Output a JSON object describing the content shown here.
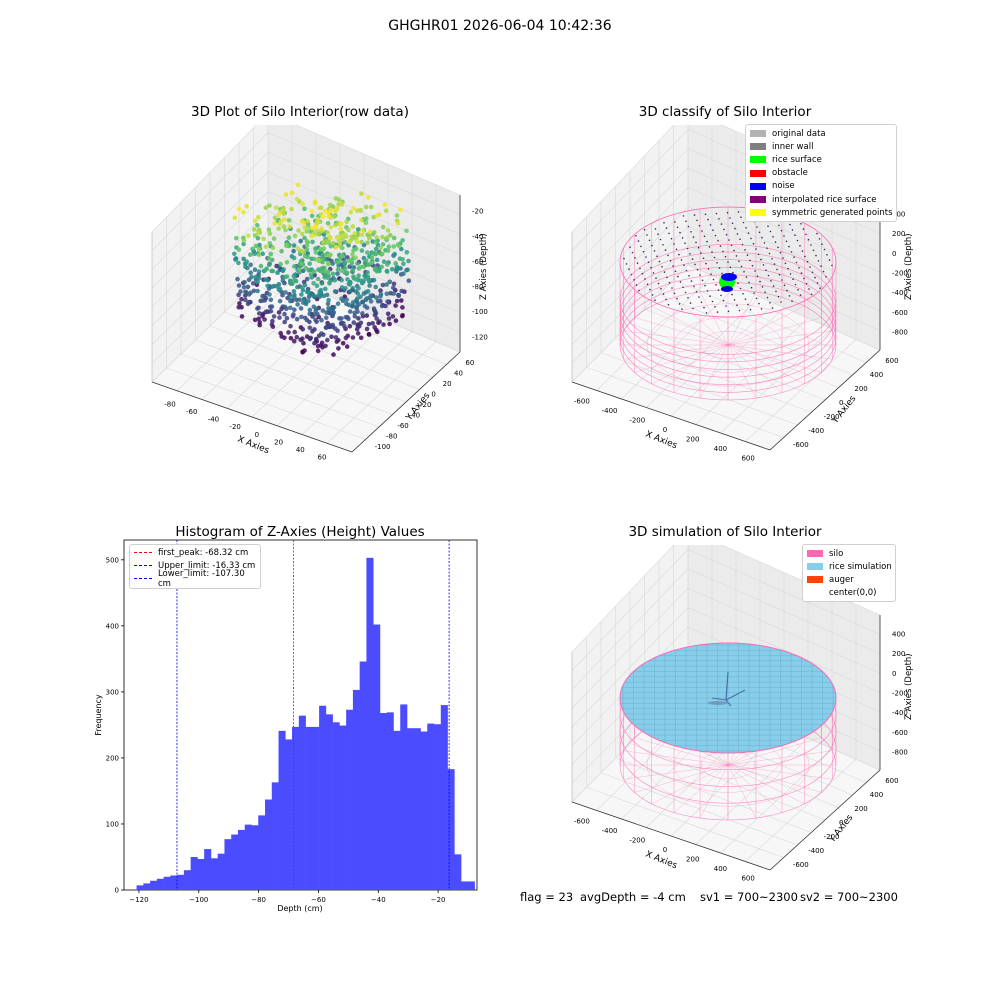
{
  "suptitle": "GHGHR01 2026-06-04 10:42:36",
  "status": {
    "flag": "flag = 23",
    "avg_depth": "avgDepth = -4 cm",
    "sv1": "sv1 = 700~2300",
    "sv2": "sv2 = 700~2300"
  },
  "panels": {
    "raw": {
      "title": "3D Plot of Silo Interior(row data)",
      "xlabel": "X Axies",
      "ylabel": "Y Axies",
      "zlabel": "Z Axies (Depth)",
      "xticks": [
        "-80",
        "-60",
        "-40",
        "-20",
        "0",
        "20",
        "40",
        "60"
      ],
      "yticks": [
        "60",
        "40",
        "20",
        "0",
        "-20",
        "-40",
        "-60",
        "-80",
        "-100"
      ],
      "zticks": [
        "-20",
        "-40",
        "-60",
        "-80",
        "-100",
        "-120"
      ]
    },
    "classify": {
      "title": "3D classify of Silo Interior",
      "xlabel": "X Axies",
      "ylabel": "Y Axies",
      "zlabel": "Z Axies (Depth)",
      "xticks": [
        "-600",
        "-400",
        "-200",
        "0",
        "200",
        "400",
        "600"
      ],
      "yticks": [
        "600",
        "400",
        "200",
        "0",
        "-200",
        "-400",
        "-600"
      ],
      "zticks": [
        "400",
        "200",
        "0",
        "-200",
        "-400",
        "-600",
        "-800"
      ],
      "legend": [
        {
          "label": "original data",
          "color": "#b3b3b3"
        },
        {
          "label": "inner wall",
          "color": "#808080"
        },
        {
          "label": "rice surface",
          "color": "#00ff00"
        },
        {
          "label": "obstacle",
          "color": "#ff0000"
        },
        {
          "label": "noise",
          "color": "#0000ff"
        },
        {
          "label": "interpolated rice surface",
          "color": "#800080"
        },
        {
          "label": "symmetric generated points",
          "color": "#ffff00"
        }
      ]
    },
    "simulation": {
      "title": "3D simulation of Silo Interior",
      "xlabel": "X Axies",
      "ylabel": "Y Axies",
      "zlabel": "Z Axies (Depth)",
      "xticks": [
        "-600",
        "-400",
        "-200",
        "0",
        "200",
        "400",
        "600"
      ],
      "yticks": [
        "600",
        "400",
        "200",
        "0",
        "-200",
        "-400",
        "-600"
      ],
      "zticks": [
        "400",
        "200",
        "0",
        "-200",
        "-400",
        "-600",
        "-800"
      ],
      "legend": [
        {
          "label": "silo",
          "color": "#ff69b4"
        },
        {
          "label": "rice simulation",
          "color": "#87ceeb"
        },
        {
          "label": "auger",
          "color": "#ff4500"
        },
        {
          "label": "center(0,0)",
          "color": "#ffffff"
        }
      ]
    }
  },
  "chart_data": {
    "type": "bar",
    "title": "Histogram of Z-Axies (Height) Values",
    "xlabel": "Depth (cm)",
    "ylabel": "Frequency",
    "xlim": [
      -125,
      -7
    ],
    "ylim": [
      0,
      530
    ],
    "xticks": [
      -120,
      -100,
      -80,
      -60,
      -40,
      -20
    ],
    "yticks": [
      0,
      100,
      200,
      300,
      400,
      500
    ],
    "bar_color": "#4c4cff",
    "bin_width": 2.26,
    "bin_start": -120.8,
    "values": [
      7,
      10,
      14,
      17,
      20,
      22,
      23,
      30,
      50,
      47,
      62,
      48,
      55,
      77,
      84,
      91,
      99,
      98,
      113,
      137,
      163,
      241,
      228,
      247,
      264,
      247,
      247,
      279,
      266,
      254,
      249,
      273,
      303,
      346,
      503,
      402,
      268,
      269,
      241,
      281,
      245,
      245,
      240,
      252,
      251,
      280,
      183,
      54,
      13,
      13
    ],
    "thresholds": [
      {
        "label": "first_peak: -68.32 cm",
        "value": -68.32,
        "color": "#ff0000"
      },
      {
        "label": "Upper_limit: -16.33 cm",
        "value": -16.33,
        "color": "#0000ff"
      },
      {
        "label": "Lower_limit: -107.30 cm",
        "value": -107.3,
        "color": "#0000ff"
      }
    ],
    "legend_position": "top-left"
  }
}
